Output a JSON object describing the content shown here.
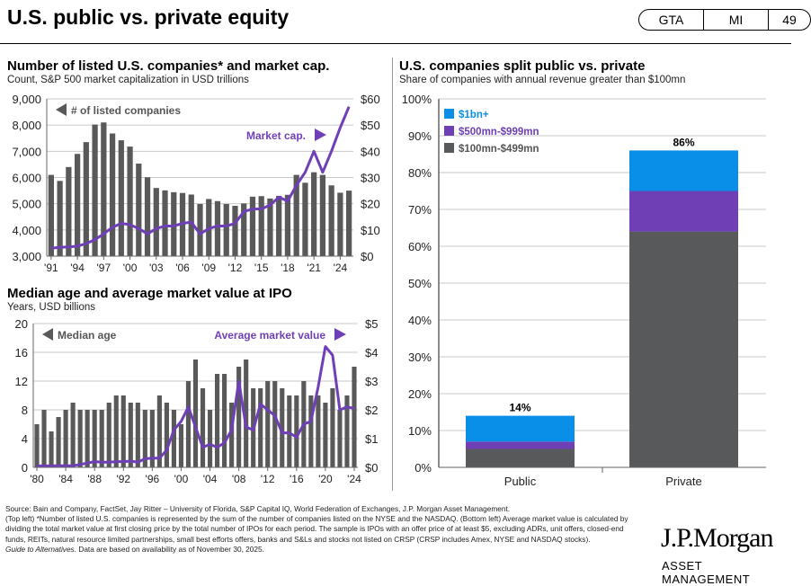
{
  "header": {
    "title": "U.S. public vs. private equity",
    "badges": [
      "GTA",
      "MI",
      "49"
    ]
  },
  "footer": {
    "source": "Source: Bain and Company, FactSet, Jay Ritter – University of Florida, S&P Capital IQ, World Federation of Exchanges, J.P. Morgan Asset Management.",
    "note": "(Top left) *Number of listed U.S. companies is represented by the sum of the number of companies listed on the NYSE and the NASDAQ. (Bottom left) Average market value is calculated by dividing the total market value at first closing price by the total number of IPOs for each period. The sample is IPOs with an offer price of at least $5, excluding ADRs, unit offers, closed-end funds, REITs, natural resource limited partnerships, small best efforts offers, banks and S&Ls and stocks not listed on CRSP (CRSP includes Amex, NYSE and NASDAQ stocks).",
    "guide": "Guide to Alternatives.",
    "availability": " Data are based on availability as of November 30, 2025."
  },
  "logo": {
    "name": "J.P.Morgan",
    "sub": "ASSET MANAGEMENT"
  },
  "colors": {
    "bar": "#595959",
    "line": "#6f3fb8",
    "blue": "#0a8fe8",
    "purple": "#6e3fb5",
    "gray": "#58595b"
  },
  "chart_data": [
    {
      "type": "bar+line",
      "title": "Number of listed U.S. companies* and market cap.",
      "subtitle": "Count, S&P 500 market capitalization in USD trillions",
      "x": [
        1991,
        1992,
        1993,
        1994,
        1995,
        1996,
        1997,
        1998,
        1999,
        2000,
        2001,
        2002,
        2003,
        2004,
        2005,
        2006,
        2007,
        2008,
        2009,
        2010,
        2011,
        2012,
        2013,
        2014,
        2015,
        2016,
        2017,
        2018,
        2019,
        2020,
        2021,
        2022,
        2023,
        2024,
        2025
      ],
      "xtick_labels": [
        "'91",
        "'94",
        "'97",
        "'00",
        "'03",
        "'06",
        "'09",
        "'12",
        "'15",
        "'18",
        "'21",
        "'24"
      ],
      "series": [
        {
          "name": "# of listed companies",
          "type": "bar",
          "axis": "left",
          "values": [
            6100,
            5870,
            6400,
            6900,
            7350,
            8020,
            8100,
            7680,
            7420,
            7180,
            6530,
            6010,
            5600,
            5510,
            5440,
            5410,
            5350,
            4990,
            5180,
            5100,
            4990,
            4920,
            5010,
            5270,
            5290,
            5200,
            5300,
            5340,
            6100,
            5800,
            6200,
            6100,
            5700,
            5420,
            5500
          ]
        },
        {
          "name": "Market cap.",
          "type": "line",
          "axis": "right",
          "values": [
            3,
            3.4,
            3.5,
            3.8,
            4.8,
            6.3,
            8.5,
            11,
            12.5,
            12,
            10.5,
            8.5,
            10.5,
            11.5,
            11.5,
            12.5,
            13,
            8.5,
            10.5,
            11.5,
            11.5,
            12.5,
            17,
            18,
            18,
            19.5,
            22.5,
            21,
            27,
            32,
            40,
            32,
            40,
            49,
            57
          ]
        }
      ],
      "ylim_left": [
        3000,
        9000
      ],
      "yticks_left": [
        "3,000",
        "4,000",
        "5,000",
        "6,000",
        "7,000",
        "8,000",
        "9,000"
      ],
      "ylim_right": [
        0,
        60
      ],
      "yticks_right": [
        "$0",
        "$10",
        "$20",
        "$30",
        "$40",
        "$50",
        "$60"
      ],
      "grid": true
    },
    {
      "type": "bar+line",
      "title": "Median age and average market value at IPO",
      "subtitle": "Years, USD billions",
      "x": [
        1980,
        1981,
        1982,
        1983,
        1984,
        1985,
        1986,
        1987,
        1988,
        1989,
        1990,
        1991,
        1992,
        1993,
        1994,
        1995,
        1996,
        1997,
        1998,
        1999,
        2000,
        2001,
        2002,
        2003,
        2004,
        2005,
        2006,
        2007,
        2008,
        2009,
        2010,
        2011,
        2012,
        2013,
        2014,
        2015,
        2016,
        2017,
        2018,
        2019,
        2020,
        2021,
        2022,
        2023,
        2024
      ],
      "xtick_labels": [
        "'80",
        "'84",
        "'88",
        "'92",
        "'96",
        "'00",
        "'04",
        "'08",
        "'12",
        "'16",
        "'20",
        "'24"
      ],
      "series": [
        {
          "name": "Median age",
          "type": "bar",
          "axis": "left",
          "values": [
            6,
            8,
            5,
            7,
            8,
            9,
            8,
            8,
            8,
            8,
            9,
            10,
            10,
            9,
            9,
            8,
            8,
            10,
            9,
            8,
            6,
            12,
            15,
            11,
            8,
            13,
            13,
            9,
            14,
            15,
            11,
            11,
            12,
            12,
            11,
            10,
            10,
            12,
            10,
            10,
            9,
            11,
            8,
            10,
            14
          ]
        },
        {
          "name": "Average market value",
          "type": "line",
          "axis": "right",
          "values": [
            0.05,
            0.05,
            0.05,
            0.06,
            0.05,
            0.06,
            0.1,
            0.15,
            0.2,
            0.18,
            0.18,
            0.2,
            0.2,
            0.22,
            0.18,
            0.3,
            0.32,
            0.32,
            0.6,
            1.3,
            1.6,
            2.1,
            1.4,
            0.7,
            0.8,
            0.7,
            0.85,
            1.3,
            3.0,
            1.4,
            1.3,
            2.2,
            2.0,
            1.8,
            1.2,
            1.2,
            1.05,
            1.5,
            1.6,
            2.8,
            4.2,
            3.9,
            2.0,
            2.1,
            2.05
          ]
        }
      ],
      "ylim_left": [
        0,
        20
      ],
      "yticks_left": [
        "0",
        "4",
        "8",
        "12",
        "16",
        "20"
      ],
      "ylim_right": [
        0,
        5
      ],
      "yticks_right": [
        "$0",
        "$1",
        "$2",
        "$3",
        "$4",
        "$5"
      ],
      "grid": true
    },
    {
      "type": "stacked-bar",
      "title": "U.S. companies split public vs. private",
      "subtitle": "Share of companies with annual revenue greater than $100mn",
      "categories": [
        "Public",
        "Private"
      ],
      "series": [
        {
          "name": "$100mn-$499mn",
          "values": [
            5,
            64
          ]
        },
        {
          "name": "$500mn-$999mn",
          "values": [
            2,
            11
          ]
        },
        {
          "name": "$1bn+",
          "values": [
            7,
            11
          ]
        }
      ],
      "totals": [
        "14%",
        "86%"
      ],
      "ylim": [
        0,
        100
      ],
      "yticks": [
        "0%",
        "10%",
        "20%",
        "30%",
        "40%",
        "50%",
        "60%",
        "70%",
        "80%",
        "90%",
        "100%"
      ],
      "legend": "top-left",
      "grid": true
    }
  ]
}
